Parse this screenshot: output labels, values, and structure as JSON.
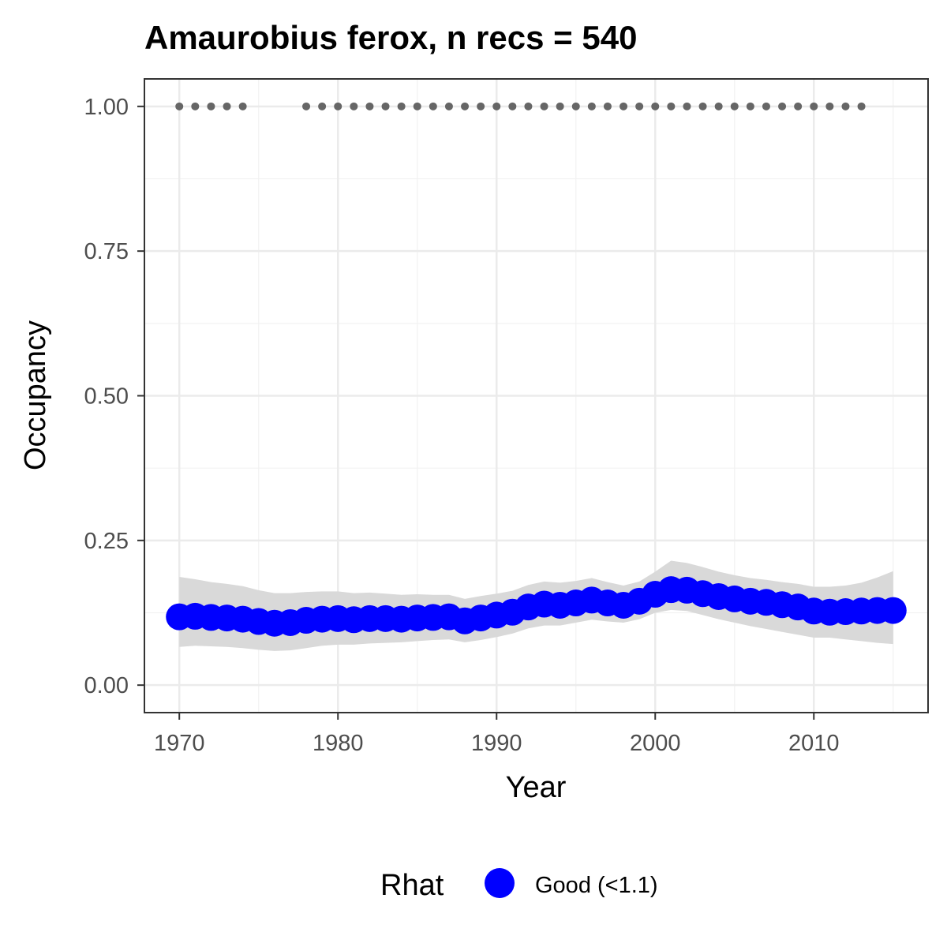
{
  "chart_data": {
    "type": "line",
    "title": "Amaurobius ferox, n recs = 540",
    "xlabel": "Year",
    "ylabel": "Occupancy",
    "xlim": [
      1967.8,
      2017.2
    ],
    "ylim": [
      -0.0475,
      1.0475
    ],
    "x_ticks": [
      1970,
      1980,
      1990,
      2000,
      2010
    ],
    "x_tick_labels": [
      "1970",
      "1980",
      "1990",
      "2000",
      "2010"
    ],
    "y_ticks": [
      0,
      0.25,
      0.5,
      0.75,
      1.0
    ],
    "y_tick_labels": [
      "0.00",
      "0.25",
      "0.50",
      "0.75",
      "1.00"
    ],
    "grid": true,
    "legend_position": "bottom",
    "legend_title": "Rhat",
    "series": [
      {
        "name": "Good (<1.1)",
        "color": "#0000ff",
        "x": [
          1970,
          1971,
          1972,
          1973,
          1974,
          1975,
          1976,
          1977,
          1978,
          1979,
          1980,
          1981,
          1982,
          1983,
          1984,
          1985,
          1986,
          1987,
          1988,
          1989,
          1990,
          1991,
          1992,
          1993,
          1994,
          1995,
          1996,
          1997,
          1998,
          1999,
          2000,
          2001,
          2002,
          2003,
          2004,
          2005,
          2006,
          2007,
          2008,
          2009,
          2010,
          2011,
          2012,
          2013,
          2014,
          2015
        ],
        "y": [
          0.118,
          0.119,
          0.117,
          0.116,
          0.114,
          0.11,
          0.107,
          0.108,
          0.112,
          0.114,
          0.115,
          0.113,
          0.115,
          0.115,
          0.114,
          0.116,
          0.117,
          0.118,
          0.111,
          0.116,
          0.121,
          0.126,
          0.135,
          0.14,
          0.138,
          0.142,
          0.147,
          0.142,
          0.138,
          0.145,
          0.157,
          0.165,
          0.164,
          0.158,
          0.153,
          0.149,
          0.145,
          0.143,
          0.139,
          0.135,
          0.128,
          0.126,
          0.127,
          0.128,
          0.129,
          0.129
        ],
        "lower": [
          0.066,
          0.068,
          0.067,
          0.066,
          0.064,
          0.061,
          0.059,
          0.06,
          0.064,
          0.068,
          0.07,
          0.07,
          0.072,
          0.073,
          0.074,
          0.076,
          0.078,
          0.079,
          0.074,
          0.078,
          0.083,
          0.089,
          0.098,
          0.103,
          0.103,
          0.108,
          0.113,
          0.11,
          0.108,
          0.114,
          0.125,
          0.13,
          0.128,
          0.121,
          0.114,
          0.108,
          0.102,
          0.097,
          0.092,
          0.087,
          0.082,
          0.082,
          0.079,
          0.076,
          0.073,
          0.071
        ],
        "upper": [
          0.187,
          0.183,
          0.178,
          0.175,
          0.171,
          0.164,
          0.159,
          0.159,
          0.161,
          0.162,
          0.162,
          0.159,
          0.16,
          0.158,
          0.156,
          0.157,
          0.156,
          0.156,
          0.149,
          0.154,
          0.158,
          0.163,
          0.173,
          0.179,
          0.177,
          0.18,
          0.185,
          0.178,
          0.172,
          0.179,
          0.196,
          0.215,
          0.211,
          0.204,
          0.196,
          0.19,
          0.185,
          0.182,
          0.178,
          0.175,
          0.17,
          0.17,
          0.172,
          0.177,
          0.186,
          0.197
        ]
      }
    ],
    "observed_records": {
      "y": 1.0,
      "color": "#666666",
      "x": [
        1970,
        1971,
        1972,
        1973,
        1974,
        1978,
        1979,
        1980,
        1981,
        1982,
        1983,
        1984,
        1985,
        1986,
        1987,
        1988,
        1989,
        1990,
        1991,
        1992,
        1993,
        1994,
        1995,
        1996,
        1997,
        1998,
        1999,
        2000,
        2001,
        2002,
        2003,
        2004,
        2005,
        2006,
        2007,
        2008,
        2009,
        2010,
        2011,
        2012,
        2013
      ]
    },
    "ribbon_color": "#d9d9d9"
  }
}
